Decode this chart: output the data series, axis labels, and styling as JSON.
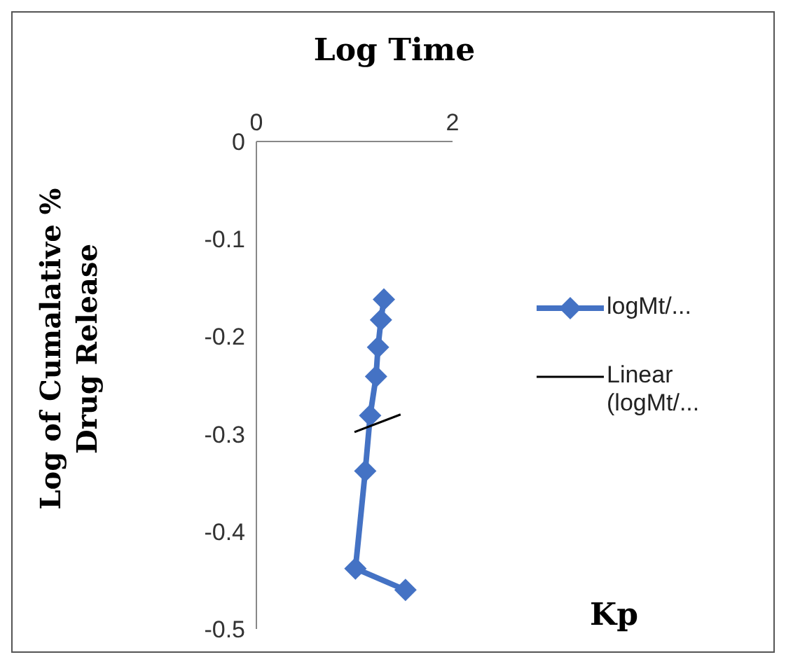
{
  "chart_data": {
    "type": "line",
    "xlabel": "Log Time",
    "ylabel": "Log of Cumalative % Drug Release",
    "xlim": [
      0,
      2
    ],
    "xticks": [
      0,
      2
    ],
    "ylim": [
      -0.5,
      0
    ],
    "yticks": [
      0,
      -0.1,
      -0.2,
      -0.3,
      -0.4,
      -0.5
    ],
    "series": [
      {
        "name": "logMt/...",
        "color": "#4472c4",
        "marker": "diamond",
        "x": [
          1.3,
          1.27,
          1.24,
          1.22,
          1.16,
          1.11,
          1.01,
          1.52
        ],
        "values": [
          -0.162,
          -0.183,
          -0.211,
          -0.241,
          -0.281,
          -0.338,
          -0.438,
          -0.46
        ]
      },
      {
        "name": "Linear (logMt/...",
        "color": "#000000",
        "marker": "none",
        "x": [
          1.0,
          1.47
        ],
        "values": [
          -0.298,
          -0.28
        ]
      }
    ],
    "legend": "right",
    "annotations": [
      "Kp"
    ]
  }
}
